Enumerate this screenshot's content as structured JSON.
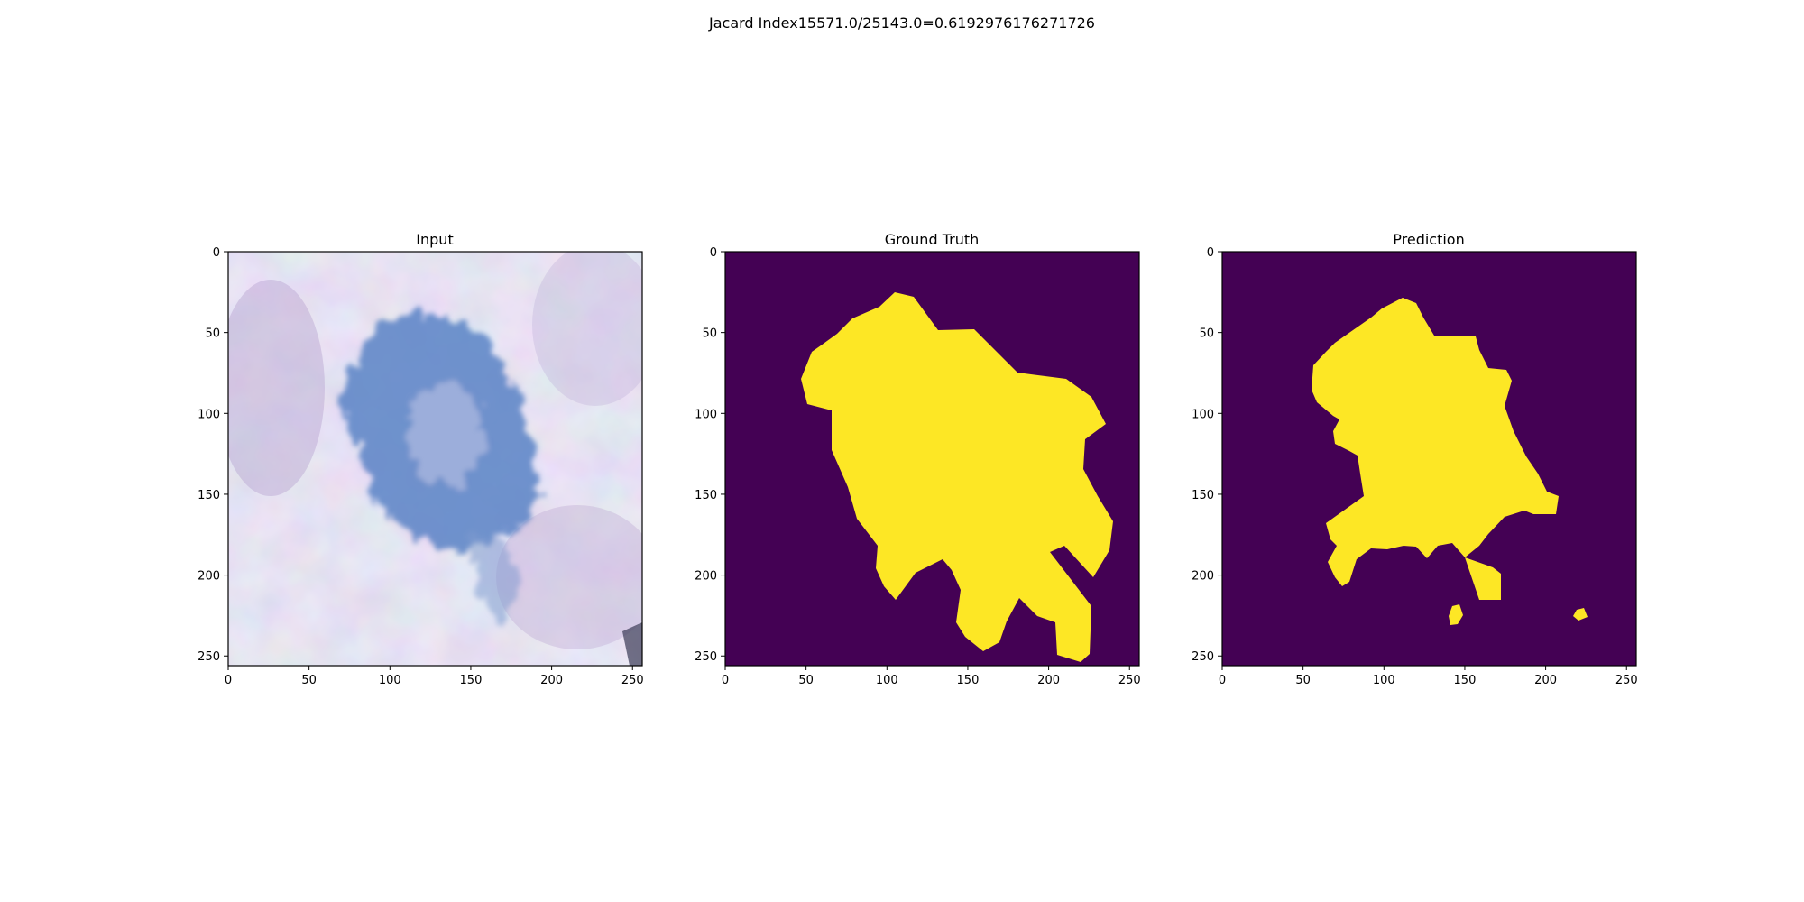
{
  "suptitle": "Jacard Index15571.0/25143.0=0.6192976176271726",
  "colors": {
    "mask_background": "#440154",
    "mask_foreground": "#fde725",
    "skin_base": "#cfc6de",
    "lesion_blue": "#4a78c0"
  },
  "panels": [
    {
      "id": "input",
      "title": "Input",
      "x_ticks": [
        "0",
        "50",
        "100",
        "150",
        "200",
        "250"
      ],
      "y_ticks": [
        "0",
        "50",
        "100",
        "150",
        "200",
        "250"
      ],
      "xlim": [
        0,
        256
      ],
      "ylim": [
        256,
        0
      ]
    },
    {
      "id": "ground-truth",
      "title": "Ground Truth",
      "x_ticks": [
        "0",
        "50",
        "100",
        "150",
        "200",
        "250"
      ],
      "y_ticks": [
        "0",
        "50",
        "100",
        "150",
        "200",
        "250"
      ],
      "xlim": [
        0,
        256
      ],
      "ylim": [
        256,
        0
      ]
    },
    {
      "id": "prediction",
      "title": "Prediction",
      "x_ticks": [
        "0",
        "50",
        "100",
        "150",
        "200",
        "250"
      ],
      "y_ticks": [
        "0",
        "50",
        "100",
        "150",
        "200",
        "250"
      ],
      "xlim": [
        0,
        256
      ],
      "ylim": [
        256,
        0
      ]
    }
  ]
}
